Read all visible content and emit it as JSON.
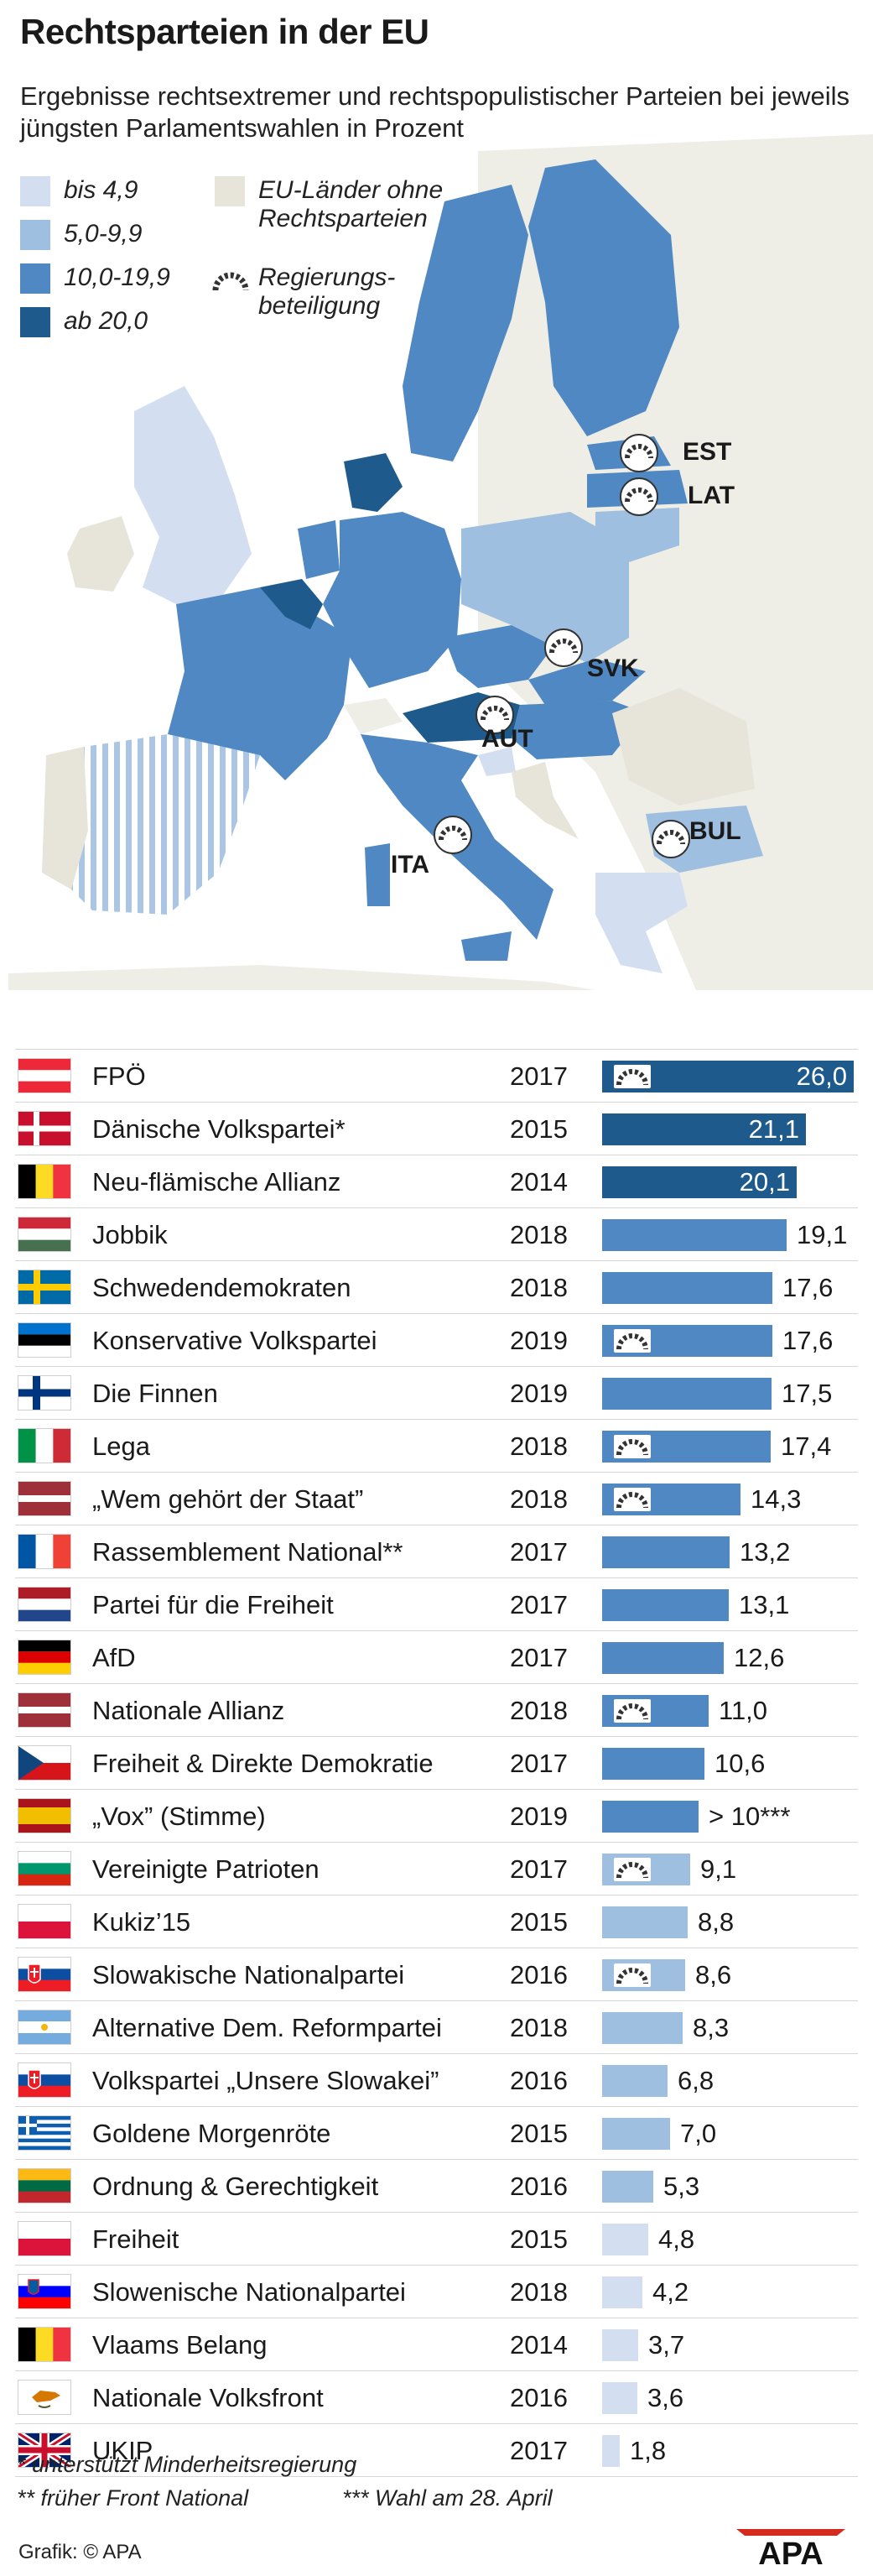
{
  "title": "Rechtsparteien in der EU",
  "subtitle": "Ergebnisse rechtsextremer und rechtspopulistischer Parteien bei jeweils jüngsten Parlamentswahlen in Prozent",
  "colors": {
    "bis_4_9": "#d3dff0",
    "s5_9_9": "#9fbfe0",
    "s10_19_9": "#4f88c2",
    "ab_20": "#1e5b8c",
    "no_right": "#e7e5da",
    "sea": "#ffffff"
  },
  "legend": {
    "bis_4_9": "bis 4,9",
    "s5_9_9": "5,0-9,9",
    "s10_19_9": "10,0-19,9",
    "ab_20": "ab 20,0",
    "no_right": "EU-Länder ohne Rechtsparteien",
    "no_right_line1": "EU-Länder ohne",
    "no_right_line2": "Rechtsparteien",
    "gov_line1": "Regierungs-",
    "gov_line2": "beteiligung"
  },
  "map_labels": {
    "est": "EST",
    "lat": "LAT",
    "svk": "SVK",
    "aut": "AUT",
    "ita": "ITA",
    "bul": "BUL"
  },
  "chart_data": {
    "type": "bar",
    "orientation": "horizontal",
    "title": "Rechtsparteien in der EU",
    "subtitle": "Ergebnisse rechtsextremer und rechtspopulistischer Parteien bei jeweils jüngsten Parlamentswahlen in Prozent",
    "xlim": [
      0,
      26
    ],
    "rows": [
      {
        "flag": "AT",
        "party": "FPÖ",
        "year": "2017",
        "value": 26.0,
        "label": "26,0",
        "gov": true
      },
      {
        "flag": "DK",
        "party": "Dänische Volkspartei*",
        "year": "2015",
        "value": 21.1,
        "label": "21,1",
        "gov": false
      },
      {
        "flag": "BE",
        "party": "Neu-flämische Allianz",
        "year": "2014",
        "value": 20.1,
        "label": "20,1",
        "gov": false
      },
      {
        "flag": "HU",
        "party": "Jobbik",
        "year": "2018",
        "value": 19.1,
        "label": "19,1",
        "gov": false
      },
      {
        "flag": "SE",
        "party": "Schwedendemokraten",
        "year": "2018",
        "value": 17.6,
        "label": "17,6",
        "gov": false
      },
      {
        "flag": "EE",
        "party": "Konservative Volkspartei",
        "year": "2019",
        "value": 17.6,
        "label": "17,6",
        "gov": true
      },
      {
        "flag": "FI",
        "party": "Die Finnen",
        "year": "2019",
        "value": 17.5,
        "label": "17,5",
        "gov": false
      },
      {
        "flag": "IT",
        "party": "Lega",
        "year": "2018",
        "value": 17.4,
        "label": "17,4",
        "gov": true
      },
      {
        "flag": "LV",
        "party": "„Wem gehört der Staat”",
        "year": "2018",
        "value": 14.3,
        "label": "14,3",
        "gov": true
      },
      {
        "flag": "FR",
        "party": "Rassemblement National**",
        "year": "2017",
        "value": 13.2,
        "label": "13,2",
        "gov": false
      },
      {
        "flag": "NL",
        "party": "Partei für die Freiheit",
        "year": "2017",
        "value": 13.1,
        "label": "13,1",
        "gov": false
      },
      {
        "flag": "DE",
        "party": "AfD",
        "year": "2017",
        "value": 12.6,
        "label": "12,6",
        "gov": false
      },
      {
        "flag": "LV",
        "party": "Nationale Allianz",
        "year": "2018",
        "value": 11.0,
        "label": "11,0",
        "gov": true
      },
      {
        "flag": "CZ",
        "party": "Freiheit & Direkte Demokratie",
        "year": "2017",
        "value": 10.6,
        "label": "10,6",
        "gov": false
      },
      {
        "flag": "ES",
        "party": "„Vox” (Stimme)",
        "year": "2019",
        "value": 10.0,
        "label": "> 10***",
        "gov": false
      },
      {
        "flag": "BG",
        "party": "Vereinigte Patrioten",
        "year": "2017",
        "value": 9.1,
        "label": "9,1",
        "gov": true
      },
      {
        "flag": "PL",
        "party": "Kukiz’15",
        "year": "2015",
        "value": 8.8,
        "label": "8,8",
        "gov": false
      },
      {
        "flag": "SK",
        "party": "Slowakische Nationalpartei",
        "year": "2016",
        "value": 8.6,
        "label": "8,6",
        "gov": true
      },
      {
        "flag": "CY",
        "party": "Alternative Dem. Reformpartei",
        "year": "2018",
        "value": 8.3,
        "label": "8,3",
        "gov": false
      },
      {
        "flag": "SK",
        "party": "Volkspartei „Unsere Slowakei”",
        "year": "2016",
        "value": 6.8,
        "label": "6,8",
        "gov": false
      },
      {
        "flag": "GR",
        "party": "Goldene Morgenröte",
        "year": "2015",
        "value": 7.0,
        "label": "7,0",
        "gov": false
      },
      {
        "flag": "LT",
        "party": "Ordnung & Gerechtigkeit",
        "year": "2016",
        "value": 5.3,
        "label": "5,3",
        "gov": false
      },
      {
        "flag": "PL",
        "party": "Freiheit",
        "year": "2015",
        "value": 4.8,
        "label": "4,8",
        "gov": false
      },
      {
        "flag": "SI",
        "party": "Slowenische Nationalpartei",
        "year": "2018",
        "value": 4.2,
        "label": "4,2",
        "gov": false
      },
      {
        "flag": "BE",
        "party": "Vlaams Belang",
        "year": "2014",
        "value": 3.7,
        "label": "3,7",
        "gov": false
      },
      {
        "flag": "CY2",
        "party": "Nationale Volksfront",
        "year": "2016",
        "value": 3.6,
        "label": "3,6",
        "gov": false
      },
      {
        "flag": "UK",
        "party": "UKIP",
        "year": "2017",
        "value": 1.8,
        "label": "1,8",
        "gov": false
      }
    ]
  },
  "footnotes": {
    "f1": "* unterstützt Minderheitsregierung",
    "f2": "** früher Front National",
    "f3": "*** Wahl am 28. April"
  },
  "source": "Grafik: © APA",
  "logo_text": "APA"
}
